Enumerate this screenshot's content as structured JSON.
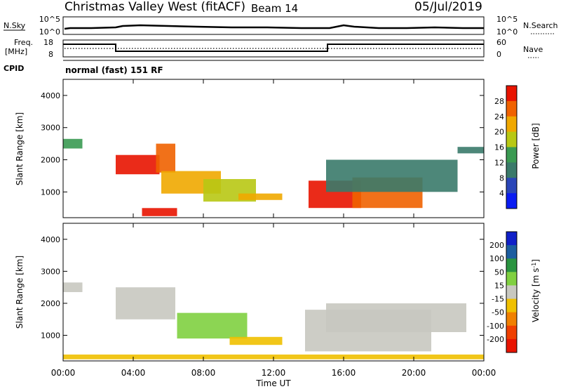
{
  "header": {
    "title": "Christmas Valley West (fitACF)",
    "beam": "Beam 14",
    "date": "05/Jul/2019"
  },
  "status_panels": {
    "nsky_label": "N.Sky",
    "nsearch_label": "N.Search",
    "nsky_ticks": [
      "10^5",
      "10^0"
    ],
    "nsearch_ticks": [
      "10^5",
      "10^0"
    ],
    "freq_label_line1": "Freq.",
    "freq_label_line2": "[MHz]",
    "freq_ticks": [
      "18",
      "8"
    ],
    "nave_label": "Nave",
    "nave_ticks": [
      "60",
      "0"
    ],
    "cpid_label": "CPID",
    "cpid_text": "normal (fast) 151 RF"
  },
  "chart_data": [
    {
      "type": "heatmap",
      "panel": "power",
      "ylabel": "Slant Range [km]",
      "yticks": [
        "1000",
        "2000",
        "3000",
        "4000"
      ],
      "ylim": [
        200,
        4500
      ],
      "colorbar_label": "Power [dB]",
      "colorbar_ticks": [
        "4",
        "8",
        "12",
        "16",
        "20",
        "24",
        "28"
      ],
      "colorbar_colors": [
        "#0a1cf2",
        "#2a46b8",
        "#3a7a6a",
        "#3a9a52",
        "#b8c814",
        "#f0a800",
        "#f06200",
        "#e81400"
      ],
      "regions": [
        {
          "t0": 0.0,
          "t1": 1.1,
          "r0": 2350,
          "r1": 2650,
          "value": 12
        },
        {
          "t0": 3.0,
          "t1": 5.5,
          "r0": 1550,
          "r1": 2150,
          "value": 28
        },
        {
          "t0": 5.3,
          "t1": 6.4,
          "r0": 1600,
          "r1": 2500,
          "value": 26
        },
        {
          "t0": 5.6,
          "t1": 9.0,
          "r0": 950,
          "r1": 1650,
          "value": 22
        },
        {
          "t0": 8.0,
          "t1": 11.0,
          "r0": 700,
          "r1": 1400,
          "value": 18
        },
        {
          "t0": 10.0,
          "t1": 12.5,
          "r0": 750,
          "r1": 950,
          "value": 20
        },
        {
          "t0": 14.0,
          "t1": 17.0,
          "r0": 500,
          "r1": 1350,
          "value": 28
        },
        {
          "t0": 16.5,
          "t1": 20.5,
          "r0": 500,
          "r1": 1450,
          "value": 26
        },
        {
          "t0": 15.0,
          "t1": 22.5,
          "r0": 1000,
          "r1": 2000,
          "value": 10
        },
        {
          "t0": 22.5,
          "t1": 24.0,
          "r0": 2200,
          "r1": 2400,
          "value": 8
        },
        {
          "t0": 4.5,
          "t1": 6.5,
          "r0": 250,
          "r1": 500,
          "value": 28
        }
      ]
    },
    {
      "type": "heatmap",
      "panel": "velocity",
      "ylabel": "Slant Range [km]",
      "yticks": [
        "1000",
        "2000",
        "3000",
        "4000"
      ],
      "ylim": [
        200,
        4500
      ],
      "colorbar_label": "Velocity [m s^-1]",
      "colorbar_ticks": [
        "200",
        "100",
        "50",
        "15",
        "-15",
        "-50",
        "-100",
        "-200"
      ],
      "colorbar_colors": [
        "#1020c8",
        "#1c5ea0",
        "#2a9440",
        "#80d040",
        "#c8c8c0",
        "#f0c000",
        "#f08000",
        "#f04000",
        "#e81400"
      ],
      "regions": [
        {
          "t0": 0.0,
          "t1": 1.1,
          "r0": 2350,
          "r1": 2650,
          "value": 0
        },
        {
          "t0": 3.0,
          "t1": 6.4,
          "r0": 1500,
          "r1": 2500,
          "value": 0
        },
        {
          "t0": 6.5,
          "t1": 10.5,
          "r0": 900,
          "r1": 1700,
          "value": 30
        },
        {
          "t0": 9.5,
          "t1": 12.5,
          "r0": 700,
          "r1": 950,
          "value": -40
        },
        {
          "t0": 13.8,
          "t1": 21.0,
          "r0": 500,
          "r1": 1800,
          "value": 0
        },
        {
          "t0": 15.0,
          "t1": 23.0,
          "r0": 1100,
          "r1": 2000,
          "value": 0
        },
        {
          "t0": 0.0,
          "t1": 24.0,
          "r0": 250,
          "r1": 400,
          "value": -40
        }
      ]
    }
  ],
  "x_axis": {
    "title": "Time UT",
    "ticks": [
      "00:00",
      "04:00",
      "08:00",
      "12:00",
      "16:00",
      "20:00",
      "00:00"
    ]
  }
}
